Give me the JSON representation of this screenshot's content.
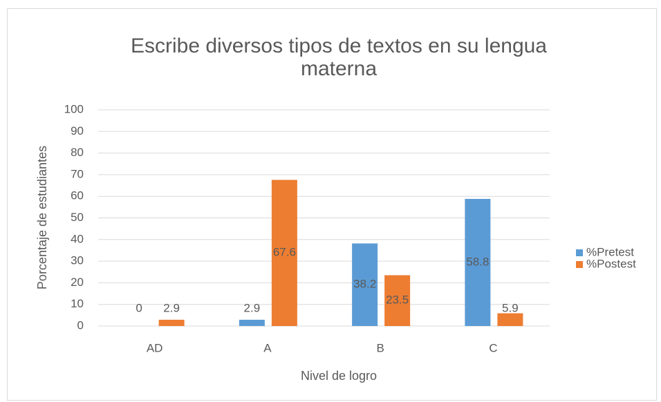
{
  "chart_data": {
    "type": "bar",
    "title": "Escribe diversos tipos de textos en su lengua materna",
    "xlabel": "Nivel de logro",
    "ylabel": "Porcentaje de estudiantes",
    "categories": [
      "AD",
      "A",
      "B",
      "C"
    ],
    "series": [
      {
        "name": "%Pretest",
        "color": "#5b9bd5",
        "values": [
          0,
          2.9,
          38.2,
          58.8
        ]
      },
      {
        "name": "%Postest",
        "color": "#ed7d31",
        "values": [
          2.9,
          67.6,
          23.5,
          5.9
        ]
      }
    ],
    "ylim": [
      0,
      100
    ],
    "yticks": [
      0,
      10,
      20,
      30,
      40,
      50,
      60,
      70,
      80,
      90,
      100
    ],
    "grid": true,
    "legend": "right"
  }
}
